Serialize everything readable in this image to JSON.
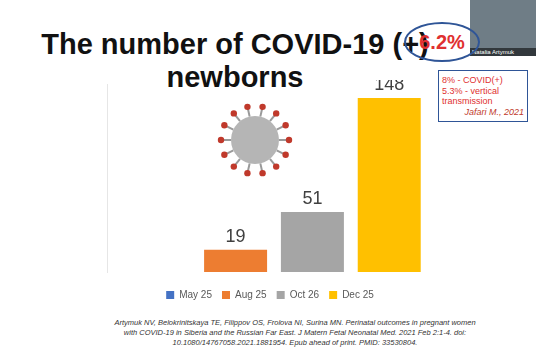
{
  "chart_data": {
    "type": "bar",
    "title": "The number of COVID-19 (+) newborns",
    "categories": [
      null
    ],
    "series": [
      {
        "name": "May 25",
        "color": "#4472c4",
        "values": [
          null
        ]
      },
      {
        "name": "Aug 25",
        "color": "#ed7d31",
        "values": [
          19
        ]
      },
      {
        "name": "Oct 26",
        "color": "#a5a5a5",
        "values": [
          51
        ]
      },
      {
        "name": "Dec 25",
        "color": "#ffc000",
        "values": [
          148
        ]
      }
    ],
    "ylim": [
      0,
      160
    ],
    "grid": false,
    "legend": "bottom",
    "data_labels": true,
    "tick_labels": false,
    "annotations": {
      "highlight": "6.2%",
      "box": [
        "8% - COVID(+)",
        "5.3% - vertical transmission",
        "Jafari M., 2021"
      ],
      "citation": "Artymuk NV, Belokrinitskaya TE, Filippov OS, Frolova NI, Surina MN. Perinatal outcomes in pregnant women with COVID-19 in Siberia and the Russian Far East. J Matern Fetal Neonatal Med. 2021 Feb 2:1-4. doi: 10.1080/14767058.2021.1881954. Epub ahead of print. PMID: 33530804.",
      "speaker": "Natalia Artymuk"
    }
  }
}
